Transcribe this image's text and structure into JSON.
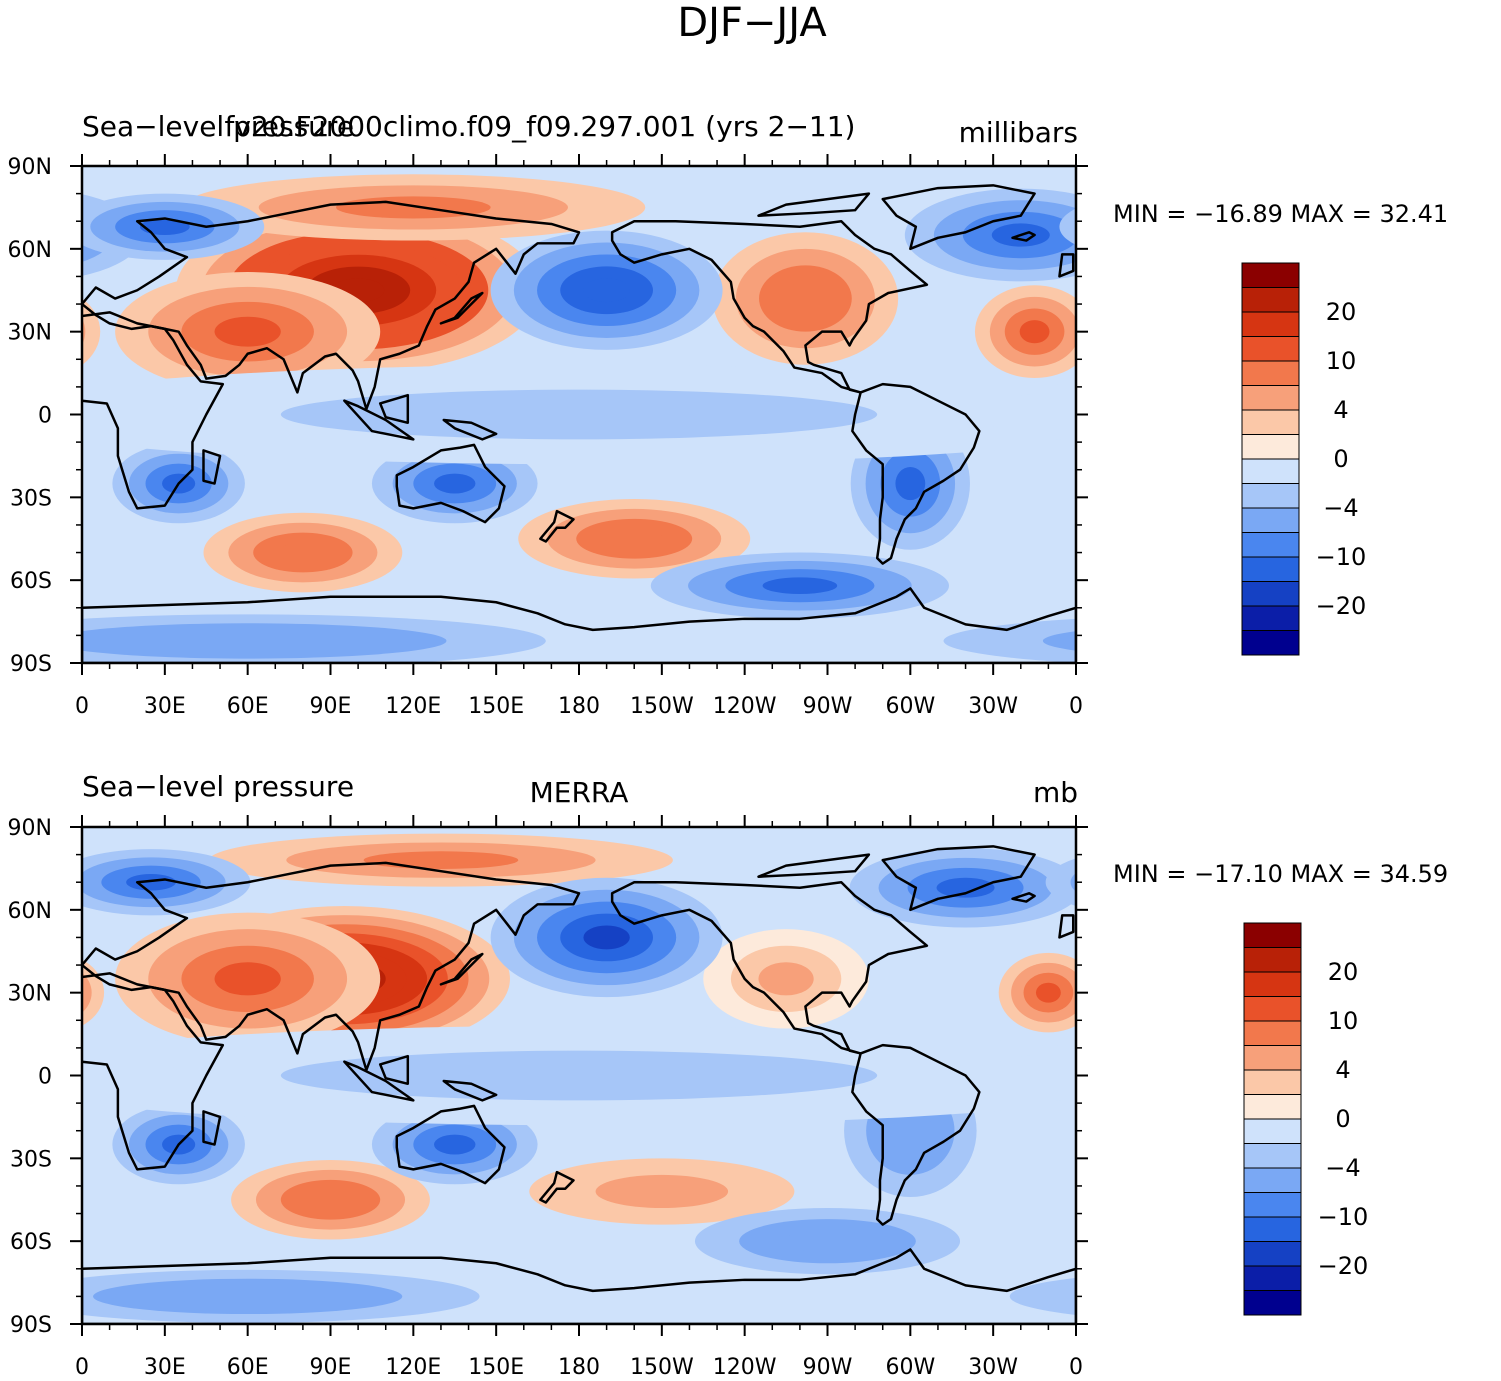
{
  "figure_title": "DJF−JJA",
  "colors": {
    "levels": [
      "#00008f",
      "#0b1ea8",
      "#1541c4",
      "#2765e0",
      "#4a86ef",
      "#7aa8f4",
      "#a6c6f8",
      "#cfe2fb",
      "#fdeadb",
      "#fbc8a8",
      "#f7a07a",
      "#f2784c",
      "#e9522a",
      "#d63512",
      "#b82107",
      "#8b0000"
    ],
    "land_outline": "#000000"
  },
  "chart_data": [
    {
      "type": "heatmap",
      "title_left": "Sea−level pressure",
      "title_center": "fv20.F2000climo.f09_f09.297.001 (yrs 2−11)",
      "title_right": "millibars",
      "stats": "MIN = −16.89  MAX =   32.41",
      "min": -16.89,
      "max": 32.41,
      "x_ticks": [
        "0",
        "30E",
        "60E",
        "90E",
        "120E",
        "150E",
        "180",
        "150W",
        "120W",
        "90W",
        "60W",
        "30W",
        "0"
      ],
      "y_ticks": [
        "90N",
        "60N",
        "30N",
        "0",
        "30S",
        "60S",
        "90S"
      ],
      "xlim": [
        0,
        360
      ],
      "ylim": [
        -90,
        90
      ],
      "colorbar_labels": [
        "20",
        "10",
        "4",
        "0",
        "−4",
        "−10",
        "−20"
      ],
      "features": [
        {
          "lon": 100,
          "lat": 45,
          "value": 24,
          "slon": 55,
          "slat": 25
        },
        {
          "lon": 60,
          "lat": 30,
          "value": 12,
          "slon": 40,
          "slat": 18
        },
        {
          "lon": 120,
          "lat": 75,
          "value": 8,
          "slon": 70,
          "slat": 10
        },
        {
          "lon": 262,
          "lat": 42,
          "value": 10,
          "slon": 28,
          "slat": 20
        },
        {
          "lon": 345,
          "lat": 30,
          "value": 12,
          "slon": 18,
          "slat": 14
        },
        {
          "lon": 190,
          "lat": 45,
          "value": -14,
          "slon": 35,
          "slat": 18
        },
        {
          "lon": 340,
          "lat": 65,
          "value": -10,
          "slon": 35,
          "slat": 14
        },
        {
          "lon": 30,
          "lat": 68,
          "value": -10,
          "slon": 30,
          "slat": 10
        },
        {
          "lon": 80,
          "lat": -50,
          "value": 10,
          "slon": 30,
          "slat": 12
        },
        {
          "lon": 200,
          "lat": -45,
          "value": 10,
          "slon": 35,
          "slat": 12
        },
        {
          "lon": 35,
          "lat": -25,
          "value": -12,
          "slon": 20,
          "slat": 12
        },
        {
          "lon": 135,
          "lat": -25,
          "value": -12,
          "slon": 25,
          "slat": 12
        },
        {
          "lon": 300,
          "lat": -25,
          "value": -10,
          "slon": 18,
          "slat": 20
        },
        {
          "lon": 260,
          "lat": -62,
          "value": -12,
          "slon": 45,
          "slat": 10
        },
        {
          "lon": 60,
          "lat": -82,
          "value": -6,
          "slon": 90,
          "slat": 8
        },
        {
          "lon": 180,
          "lat": 0,
          "value": -2,
          "slon": 180,
          "slat": 15
        }
      ]
    },
    {
      "type": "heatmap",
      "title_left": "Sea−level pressure",
      "title_center": "MERRA",
      "title_right": "mb",
      "stats": "MIN = −17.10  MAX =   34.59",
      "min": -17.1,
      "max": 34.59,
      "x_ticks": [
        "0",
        "30E",
        "60E",
        "90E",
        "120E",
        "150E",
        "180",
        "150W",
        "120W",
        "90W",
        "60W",
        "30W",
        "0"
      ],
      "y_ticks": [
        "90N",
        "60N",
        "30N",
        "0",
        "30S",
        "60S",
        "90S"
      ],
      "xlim": [
        0,
        360
      ],
      "ylim": [
        -90,
        90
      ],
      "colorbar_labels": [
        "20",
        "10",
        "4",
        "0",
        "−4",
        "−10",
        "−20"
      ],
      "features": [
        {
          "lon": 95,
          "lat": 35,
          "value": 26,
          "slon": 50,
          "slat": 22
        },
        {
          "lon": 60,
          "lat": 35,
          "value": 12,
          "slon": 40,
          "slat": 20
        },
        {
          "lon": 130,
          "lat": 78,
          "value": 8,
          "slon": 70,
          "slat": 8
        },
        {
          "lon": 255,
          "lat": 35,
          "value": 6,
          "slon": 25,
          "slat": 15
        },
        {
          "lon": 350,
          "lat": 30,
          "value": 12,
          "slon": 15,
          "slat": 12
        },
        {
          "lon": 190,
          "lat": 50,
          "value": -16,
          "slon": 35,
          "slat": 18
        },
        {
          "lon": 320,
          "lat": 68,
          "value": -12,
          "slon": 35,
          "slat": 12
        },
        {
          "lon": 25,
          "lat": 70,
          "value": -12,
          "slon": 30,
          "slat": 10
        },
        {
          "lon": 90,
          "lat": -45,
          "value": 10,
          "slon": 30,
          "slat": 12
        },
        {
          "lon": 210,
          "lat": -42,
          "value": 5,
          "slon": 40,
          "slat": 10
        },
        {
          "lon": 35,
          "lat": -25,
          "value": -10,
          "slon": 20,
          "slat": 12
        },
        {
          "lon": 135,
          "lat": -25,
          "value": -12,
          "slon": 25,
          "slat": 12
        },
        {
          "lon": 300,
          "lat": -20,
          "value": -6,
          "slon": 20,
          "slat": 20
        },
        {
          "lon": 270,
          "lat": -60,
          "value": -6,
          "slon": 40,
          "slat": 10
        },
        {
          "lon": 60,
          "lat": -80,
          "value": -6,
          "slon": 70,
          "slat": 8
        },
        {
          "lon": 180,
          "lat": 0,
          "value": -2,
          "slon": 180,
          "slat": 15
        }
      ]
    }
  ]
}
